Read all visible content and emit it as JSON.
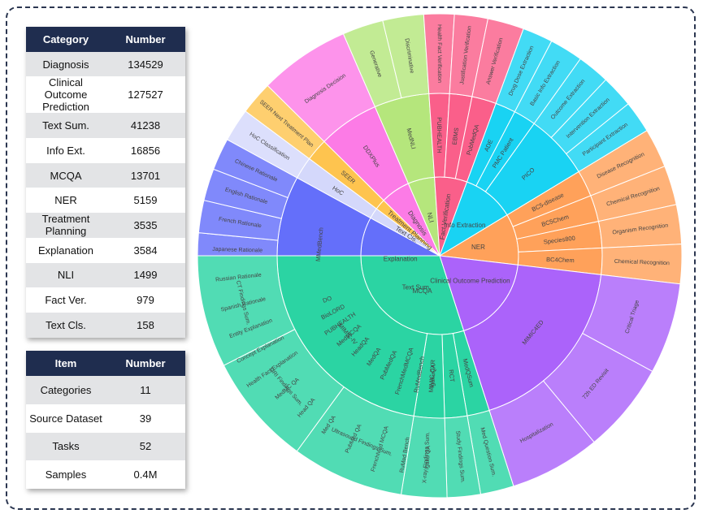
{
  "category_table": {
    "headers": [
      "Category",
      "Number"
    ],
    "rows": [
      [
        "Diagnosis",
        "134529"
      ],
      [
        "Clinical Outcome Prediction",
        "127527"
      ],
      [
        "Text Sum.",
        "41238"
      ],
      [
        "Info Ext.",
        "16856"
      ],
      [
        "MCQA",
        "13701"
      ],
      [
        "NER",
        "5159"
      ],
      [
        "Treatment Planning",
        "3535"
      ],
      [
        "Explanation",
        "3584"
      ],
      [
        "NLI",
        "1499"
      ],
      [
        "Fact Ver.",
        "979"
      ],
      [
        "Text Cls.",
        "158"
      ]
    ]
  },
  "summary_table": {
    "headers": [
      "Item",
      "Number"
    ],
    "rows": [
      [
        "Categories",
        "11"
      ],
      [
        "Source Dataset",
        "39"
      ],
      [
        "Tasks",
        "52"
      ],
      [
        "Samples",
        "0.4M"
      ]
    ]
  },
  "chart_data": {
    "type": "sunburst",
    "start_angle_deg": 90,
    "direction": "clockwise",
    "categories": [
      {
        "name": "MCQA",
        "color": "#ee553b",
        "value": 7.2,
        "children": [
          {
            "name": "IgakuQA",
            "value": 0.9,
            "children": [
              {
                "name": "Igaku QA",
                "value": 0.9
              }
            ]
          },
          {
            "name": "RuMedBench",
            "value": 0.9,
            "children": [
              {
                "name": "RuMed Bench",
                "value": 0.9
              }
            ]
          },
          {
            "name": "FrenchMedMCQA",
            "value": 1.1,
            "children": [
              {
                "name": "FrenchMed MCQA",
                "value": 1.1
              }
            ]
          },
          {
            "name": "PubMedQA",
            "value": 1.1,
            "children": [
              {
                "name": "PubMed QA",
                "value": 1.1
              }
            ]
          },
          {
            "name": "MedQA",
            "value": 1.1,
            "children": [
              {
                "name": "Med QA",
                "value": 1.1
              }
            ]
          },
          {
            "name": "HeadQA",
            "value": 1.1,
            "children": [
              {
                "name": "Head QA",
                "value": 1.1
              }
            ]
          },
          {
            "name": "MedMCQA",
            "value": 1.0,
            "children": [
              {
                "name": "MedMC QA",
                "value": 1.0
              }
            ]
          }
        ]
      },
      {
        "name": "Explanation",
        "color": "#646ffa",
        "value": 9.1,
        "children": [
          {
            "name": "PUBHEALTH",
            "value": 0.9,
            "children": [
              {
                "name": "Health Fact Explanation",
                "value": 0.9
              }
            ]
          },
          {
            "name": "BioLORD",
            "value": 0.9,
            "children": [
              {
                "name": "Concept Explanation",
                "value": 0.9
              }
            ]
          },
          {
            "name": "DO",
            "value": 0.9,
            "children": [
              {
                "name": "Entity Explanation",
                "value": 0.9
              }
            ]
          },
          {
            "name": "MMedBench",
            "value": 6.4,
            "children": [
              {
                "name": "Spanish Rationale",
                "value": 1.07
              },
              {
                "name": "Russian Rationale",
                "value": 1.07
              },
              {
                "name": "Japanese Rationale",
                "value": 1.07
              },
              {
                "name": "French Rationale",
                "value": 1.07
              },
              {
                "name": "English Rationale",
                "value": 1.06
              },
              {
                "name": "Chinese Rationale",
                "value": 1.06
              }
            ]
          }
        ]
      },
      {
        "name": "Text Cls.",
        "color": "#d4d8fb",
        "value": 1.1,
        "children": [
          {
            "name": "HoC",
            "value": 1.1,
            "children": [
              {
                "name": "HoC Classification",
                "value": 1.1
              }
            ]
          }
        ]
      },
      {
        "name": "Treatment Planning",
        "color": "#fec44f",
        "value": 1.1,
        "children": [
          {
            "name": "SEER",
            "value": 1.1,
            "children": [
              {
                "name": "SEER Next Treatment Plan",
                "value": 1.1
              }
            ]
          }
        ]
      },
      {
        "name": "Diagnosis",
        "color": "#fc7be6",
        "value": 3.0,
        "children": [
          {
            "name": "DDXPlus",
            "value": 3.0,
            "children": [
              {
                "name": "Diagnosis Decision",
                "value": 3.0
              }
            ]
          }
        ]
      },
      {
        "name": "NLI",
        "color": "#b5e67c",
        "value": 2.7,
        "children": [
          {
            "name": "MedNLI",
            "value": 2.7,
            "children": [
              {
                "name": "Generative",
                "value": 1.35
              },
              {
                "name": "Discriminative",
                "value": 1.35
              }
            ]
          }
        ]
      },
      {
        "name": "Fact Verification",
        "color": "#fa5f8a",
        "value": 3.3,
        "children": [
          {
            "name": "PUBHEALTH",
            "value": 1.0,
            "children": [
              {
                "name": "Health Fact Verification",
                "value": 1.0
              }
            ]
          },
          {
            "name": "EBMS",
            "value": 1.1,
            "children": [
              {
                "name": "Justification Verification",
                "value": 1.1
              }
            ]
          },
          {
            "name": "PubMedQA",
            "value": 1.2,
            "children": [
              {
                "name": "Answer Verification",
                "value": 1.2
              }
            ]
          }
        ]
      },
      {
        "name": "Info Extraction",
        "color": "#19d3f3",
        "value": 5.3,
        "children": [
          {
            "name": "ADE",
            "value": 1.0,
            "children": [
              {
                "name": "Drug Dose Extraction",
                "value": 1.0
              }
            ]
          },
          {
            "name": "PMC Patient",
            "value": 1.1,
            "children": [
              {
                "name": "Basic Info Extraction",
                "value": 1.1
              }
            ]
          },
          {
            "name": "PICO",
            "value": 3.2,
            "children": [
              {
                "name": "Outcome Extraction",
                "value": 1.07
              },
              {
                "name": "Intervention Extraction",
                "value": 1.07
              },
              {
                "name": "Participant Extraction",
                "value": 1.06
              }
            ]
          }
        ]
      },
      {
        "name": "NER",
        "color": "#ffa15a",
        "value": 5.2,
        "children": [
          {
            "name": "BC5-disease",
            "value": 1.3,
            "children": [
              {
                "name": "Disease Recognition",
                "value": 1.3
              }
            ]
          },
          {
            "name": "BC5Chem",
            "value": 1.3,
            "children": [
              {
                "name": "Chemical Recognition",
                "value": 1.3
              }
            ]
          },
          {
            "name": "Species800",
            "value": 1.3,
            "children": [
              {
                "name": "Organism Recognition",
                "value": 1.3
              }
            ]
          },
          {
            "name": "BC4Chem",
            "value": 1.3,
            "children": [
              {
                "name": "Chemical Recognition",
                "value": 1.3
              }
            ]
          }
        ]
      },
      {
        "name": "Clinical Outcome Prediction",
        "color": "#ab63fa",
        "value": 9.0,
        "children": [
          {
            "name": "MIMIC4ED",
            "value": 9.0,
            "children": [
              {
                "name": "Critical Triage",
                "value": 3.0
              },
              {
                "name": "72h ED Revisit",
                "value": 3.0
              },
              {
                "name": "Hospitalization",
                "value": 3.0
              }
            ]
          }
        ]
      },
      {
        "name": "Text Sum.",
        "color": "#2bd4a3",
        "value": 14.8,
        "children": [
          {
            "name": "MedQSum",
            "value": 1.1,
            "children": [
              {
                "name": "Med Question Sum.",
                "value": 1.1
              }
            ]
          },
          {
            "name": "RCT",
            "value": 1.1,
            "children": [
              {
                "name": "Study Findings Sum.",
                "value": 1.1
              }
            ]
          },
          {
            "name": "MIMIC-CXR",
            "value": 1.5,
            "children": [
              {
                "name": "X-ray Findings Sum.",
                "value": 1.5
              }
            ]
          },
          {
            "name": "MIMIC-IV",
            "value": 11.1,
            "children": [
              {
                "name": "Ultrasound Findings Sum.",
                "value": 3.7
              },
              {
                "name": "MRI Findings Sum.",
                "value": 3.7
              },
              {
                "name": "CT Findings Sum.",
                "value": 3.7
              }
            ]
          }
        ]
      }
    ]
  }
}
